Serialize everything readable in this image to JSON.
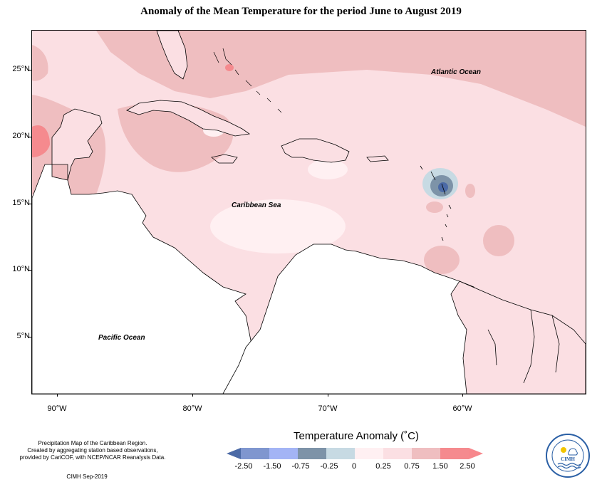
{
  "title": "Anomaly of the Mean Temperature for the period June to August 2019",
  "map": {
    "latitude_labels": [
      "25°N",
      "20°N",
      "15°N",
      "10°N",
      "5°N"
    ],
    "longitude_labels": [
      "90°W",
      "80°W",
      "70°W",
      "60°W"
    ],
    "ocean_labels": {
      "atlantic": "Atlantic Ocean",
      "caribbean": "Caribbean Sea",
      "pacific": "Pacific Ocean"
    }
  },
  "legend": {
    "title": "Temperature Anomaly (˚C)",
    "tick_labels": [
      "-2.50",
      "-1.50",
      "-0.75",
      "-0.25",
      "0",
      "0.25",
      "0.75",
      "1.50",
      "2.50"
    ],
    "colors": [
      "#4b6aa6",
      "#7f96cf",
      "#a3b4f5",
      "#7d93a8",
      "#c7dae3",
      "#fff0f2",
      "#fbdfe3",
      "#efbec0",
      "#f58a8e",
      "#f7878c"
    ]
  },
  "footer": {
    "note_line1": "Precipitation Map of the Caribbean Region.",
    "note_line2": "Created by aggregating station based observations,",
    "note_line3": "provided by CariCOF, with NCEP/NCAR Reanalysis Data.",
    "credit": "CIMH Sep-2019"
  },
  "logo": {
    "text": "CIMH"
  }
}
